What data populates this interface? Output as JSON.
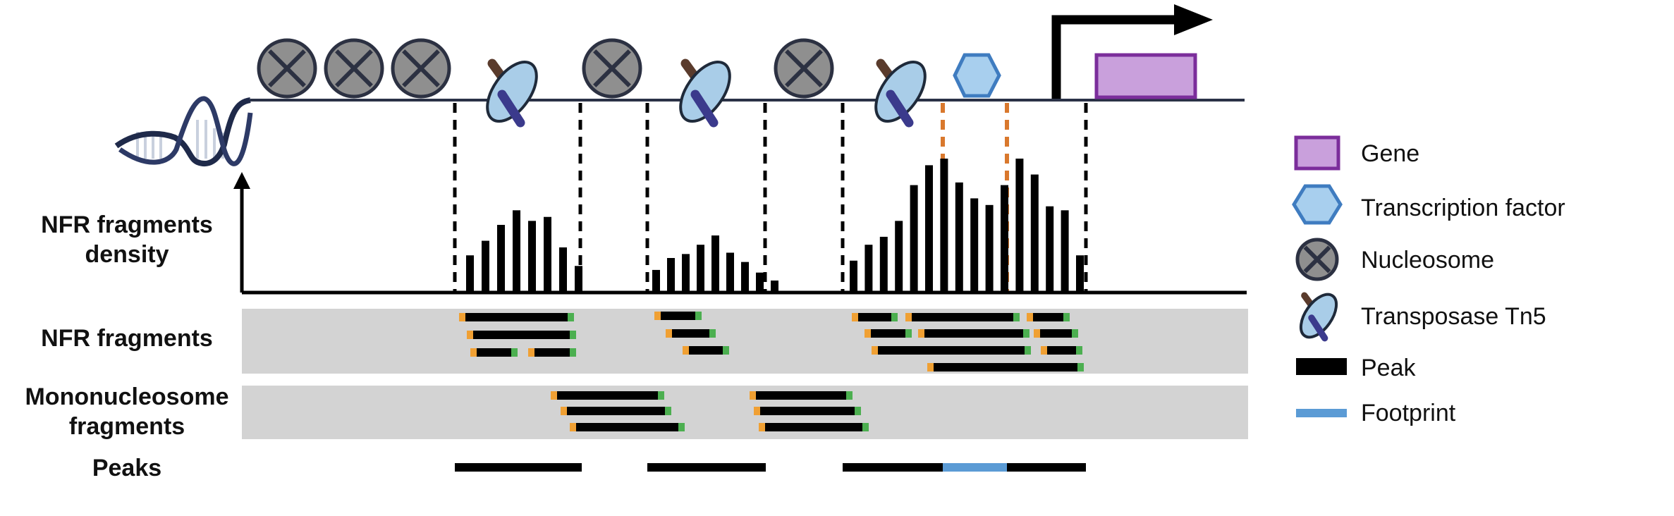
{
  "row_labels": {
    "density_line1": "NFR fragments",
    "density_line2": "density",
    "nfr": "NFR fragments",
    "mono_line1": "Mononucleosome",
    "mono_line2": "fragments",
    "peaks": "Peaks"
  },
  "legend": {
    "gene": "Gene",
    "tf": "Transcription factor",
    "nucleosome": "Nucleosome",
    "tn5": "Transposase Tn5",
    "peak": "Peak",
    "footprint": "Footprint"
  },
  "colors": {
    "dna_line": "#2b3247",
    "nucleosome_fill": "#8f8f8f",
    "nucleosome_border": "#2c3142",
    "tn5_fill": "#a9cde8",
    "tn5_handle_dark": "#5a3b2c",
    "tn5_handle_blue": "#3b3a8c",
    "tf_fill": "#a8cfee",
    "tf_border": "#3f7cc0",
    "gene_fill": "#c9a0dc",
    "gene_border": "#7b2d9b",
    "track_bg": "#d3d3d3",
    "fragment_body": "#000000",
    "fragment_left_cap": "#f0a033",
    "fragment_right_cap": "#4caf50",
    "footprint": "#5b9bd5",
    "peak": "#000000",
    "tf_guide": "#d9782d"
  },
  "icons": [
    "dna-helix-icon",
    "nucleosome-icon",
    "tn5-icon",
    "transcription-factor-icon",
    "gene-icon",
    "tss-arrow-icon"
  ],
  "density_levels": {
    "peak_region_1": [
      0.27,
      0.38,
      0.5,
      0.61,
      0.53,
      0.56,
      0.33,
      0.19
    ],
    "peak_region_2": [
      0.16,
      0.25,
      0.28,
      0.35,
      0.42,
      0.29,
      0.22,
      0.14,
      0.08
    ],
    "peak_region_3": [
      0.23,
      0.35,
      0.41,
      0.53,
      0.8,
      0.95,
      1.0,
      0.82,
      0.7,
      0.65,
      0.8,
      1.0,
      0.88,
      0.64,
      0.61,
      0.27
    ]
  }
}
